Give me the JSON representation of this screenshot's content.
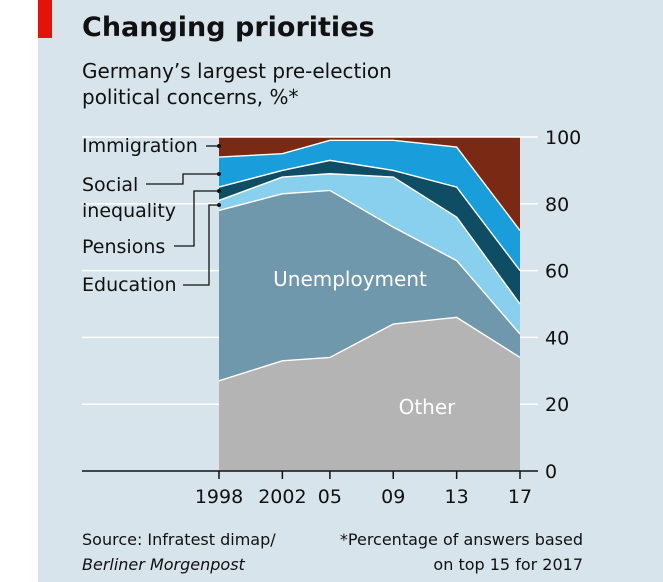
{
  "chart_data": {
    "type": "area",
    "stacked": true,
    "title": "Changing priorities",
    "subtitle_lines": [
      "Germany’s largest pre-election",
      "political concerns, %*"
    ],
    "x": [
      1998,
      2002,
      2005,
      2009,
      2013,
      2017
    ],
    "x_tick_labels": [
      "1998",
      "2002",
      "05",
      "09",
      "13",
      "17"
    ],
    "ylim": [
      0,
      100
    ],
    "y_ticks": [
      0,
      20,
      40,
      60,
      80,
      100
    ],
    "y_tick_labels": [
      "0",
      "20",
      "40",
      "60",
      "80",
      "100"
    ],
    "y_axis_position": "right",
    "series": [
      {
        "name": "Other",
        "color": "#b4b4b4",
        "values": [
          27,
          33,
          34,
          44,
          46,
          34
        ]
      },
      {
        "name": "Unemployment",
        "color": "#6f98ad",
        "values": [
          51,
          50,
          50,
          29,
          17,
          7
        ]
      },
      {
        "name": "Education",
        "color": "#89d0ef",
        "values": [
          3,
          5,
          5,
          15,
          13,
          9
        ]
      },
      {
        "name": "Pensions",
        "color": "#0e4d64",
        "values": [
          4,
          2,
          4,
          2,
          9,
          10
        ]
      },
      {
        "name": "Social inequality",
        "color": "#1a9edb",
        "values": [
          9,
          5,
          6,
          9,
          12,
          12
        ]
      },
      {
        "name": "Immigration",
        "color": "#7a2a14",
        "values": [
          6,
          5,
          1,
          1,
          3,
          28
        ]
      }
    ],
    "left_labels": [
      {
        "key": "immigration",
        "lines": [
          "Immigration"
        ]
      },
      {
        "key": "social",
        "lines": [
          "Social",
          "inequality"
        ]
      },
      {
        "key": "pensions",
        "lines": [
          "Pensions"
        ]
      },
      {
        "key": "education",
        "lines": [
          "Education"
        ]
      }
    ],
    "inline_labels": [
      "Unemployment",
      "Other"
    ]
  },
  "source": {
    "text": "Source: Infratest dimap/",
    "publication": "Berliner Morgenpost",
    "footnote_lines": [
      "*Percentage of answers based",
      "on top 15 for 2017"
    ]
  }
}
